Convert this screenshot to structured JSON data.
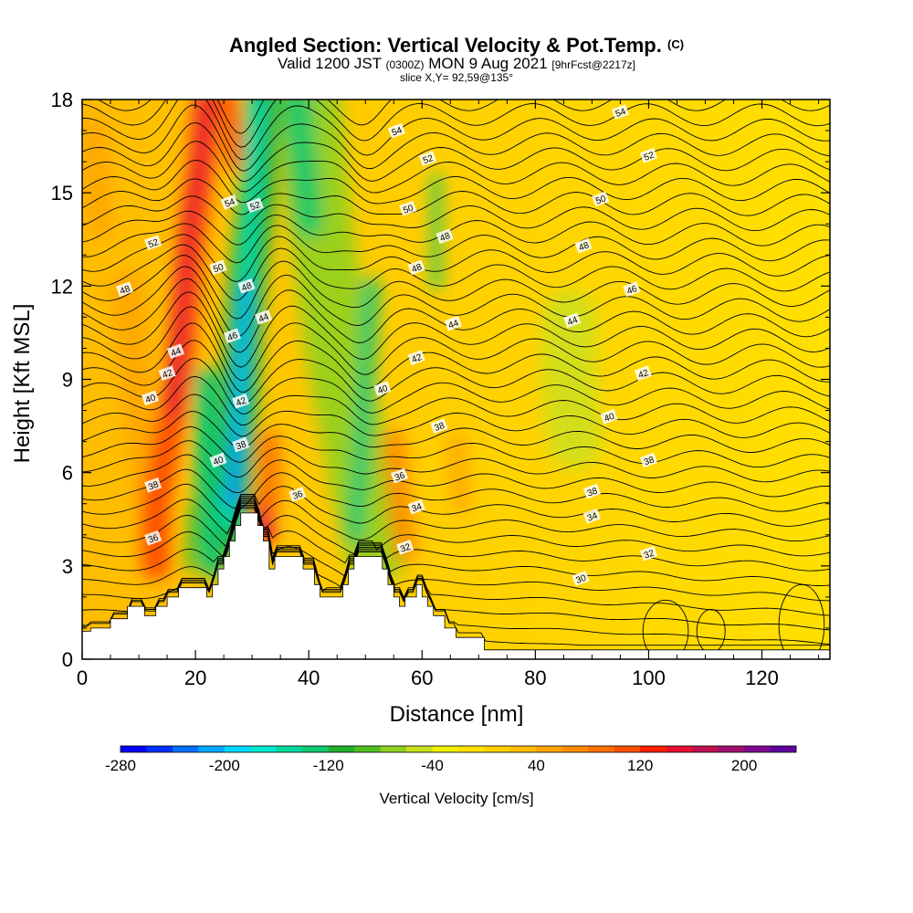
{
  "chart_data": {
    "type": "heatmap",
    "title": "Angled Section: Vertical Velocity & Pot.Temp.",
    "title_suffix": "(C)",
    "subtitle_main_a": "Valid 1200 JST",
    "subtitle_small_a": "(0300Z)",
    "subtitle_main_b": "MON 9 Aug 2021",
    "subtitle_small_b": "[9hrFcst@2217z]",
    "slice_label": "slice X,Y= 92,59@135°",
    "xlabel": "Distance [nm]",
    "ylabel": "Height [Kft MSL]",
    "xlim": [
      0,
      132
    ],
    "ylim": [
      0,
      18
    ],
    "x_ticks": [
      0,
      20,
      40,
      60,
      80,
      100,
      120
    ],
    "y_ticks": [
      0,
      3,
      6,
      9,
      12,
      15,
      18
    ],
    "colorbar": {
      "label": "Vertical Velocity [cm/s]",
      "range": [
        -280,
        240
      ],
      "tick_labels": [
        -280,
        -200,
        -120,
        -40,
        40,
        120,
        200
      ],
      "colors": [
        "#0000ff",
        "#0030ff",
        "#0070ff",
        "#00a8ff",
        "#00d8ff",
        "#00e8d0",
        "#00d8a0",
        "#10c870",
        "#20b030",
        "#50c020",
        "#90d020",
        "#c8e020",
        "#f0f000",
        "#ffe000",
        "#ffd000",
        "#ffbc00",
        "#ffa400",
        "#ff8c00",
        "#ff7000",
        "#ff5000",
        "#ff2000",
        "#e81030",
        "#c01050",
        "#a01070",
        "#800890",
        "#6000a0"
      ]
    },
    "theta_contour_labels": [
      {
        "v": "54",
        "x": 55.5,
        "y": 17.0
      },
      {
        "v": "52",
        "x": 61,
        "y": 16.1
      },
      {
        "v": "54",
        "x": 95,
        "y": 17.6
      },
      {
        "v": "52",
        "x": 100,
        "y": 16.2
      },
      {
        "v": "54",
        "x": 26,
        "y": 14.7
      },
      {
        "v": "52",
        "x": 30.5,
        "y": 14.6
      },
      {
        "v": "50",
        "x": 57.5,
        "y": 14.5
      },
      {
        "v": "50",
        "x": 91.5,
        "y": 14.8
      },
      {
        "v": "48",
        "x": 64,
        "y": 13.6
      },
      {
        "v": "52",
        "x": 12.5,
        "y": 13.4
      },
      {
        "v": "48",
        "x": 88.5,
        "y": 13.3
      },
      {
        "v": "50",
        "x": 24,
        "y": 12.6
      },
      {
        "v": "48",
        "x": 59,
        "y": 12.6
      },
      {
        "v": "48",
        "x": 29,
        "y": 12.0
      },
      {
        "v": "48",
        "x": 7.5,
        "y": 11.9
      },
      {
        "v": "46",
        "x": 97,
        "y": 11.9
      },
      {
        "v": "44",
        "x": 32,
        "y": 11.0
      },
      {
        "v": "44",
        "x": 65.5,
        "y": 10.8
      },
      {
        "v": "44",
        "x": 86.5,
        "y": 10.9
      },
      {
        "v": "46",
        "x": 26.5,
        "y": 10.4
      },
      {
        "v": "44",
        "x": 16.5,
        "y": 9.9
      },
      {
        "v": "42",
        "x": 59,
        "y": 9.7
      },
      {
        "v": "42",
        "x": 15,
        "y": 9.2
      },
      {
        "v": "42",
        "x": 99,
        "y": 9.2
      },
      {
        "v": "40",
        "x": 53,
        "y": 8.7
      },
      {
        "v": "40",
        "x": 12,
        "y": 8.4
      },
      {
        "v": "42",
        "x": 28,
        "y": 8.3
      },
      {
        "v": "40",
        "x": 93,
        "y": 7.8
      },
      {
        "v": "38",
        "x": 63,
        "y": 7.5
      },
      {
        "v": "38",
        "x": 28,
        "y": 6.9
      },
      {
        "v": "40",
        "x": 24,
        "y": 6.4
      },
      {
        "v": "38",
        "x": 100,
        "y": 6.4
      },
      {
        "v": "36",
        "x": 56,
        "y": 5.9
      },
      {
        "v": "38",
        "x": 12.5,
        "y": 5.6
      },
      {
        "v": "38",
        "x": 90,
        "y": 5.4
      },
      {
        "v": "36",
        "x": 38,
        "y": 5.3
      },
      {
        "v": "34",
        "x": 59,
        "y": 4.9
      },
      {
        "v": "34",
        "x": 90,
        "y": 4.6
      },
      {
        "v": "36",
        "x": 12.5,
        "y": 3.9
      },
      {
        "v": "32",
        "x": 57,
        "y": 3.6
      },
      {
        "v": "32",
        "x": 100,
        "y": 3.4
      },
      {
        "v": "30",
        "x": 88,
        "y": 2.6
      }
    ],
    "terrain": [
      [
        0,
        0.9
      ],
      [
        1.5,
        0.9
      ],
      [
        1.5,
        1.0
      ],
      [
        5,
        1.0
      ],
      [
        5,
        1.3
      ],
      [
        8,
        1.3
      ],
      [
        8,
        1.7
      ],
      [
        11,
        1.7
      ],
      [
        11,
        1.4
      ],
      [
        13,
        1.4
      ],
      [
        13,
        1.7
      ],
      [
        15,
        1.7
      ],
      [
        15,
        2.0
      ],
      [
        17,
        2.0
      ],
      [
        17,
        2.3
      ],
      [
        22,
        2.3
      ],
      [
        22,
        2.0
      ],
      [
        23,
        2.0
      ],
      [
        23,
        2.4
      ],
      [
        24,
        2.4
      ],
      [
        24,
        2.9
      ],
      [
        25,
        2.9
      ],
      [
        25,
        3.3
      ],
      [
        26,
        3.3
      ],
      [
        26,
        3.8
      ],
      [
        27,
        3.8
      ],
      [
        27,
        4.3
      ],
      [
        28,
        4.3
      ],
      [
        28,
        4.7
      ],
      [
        31,
        4.7
      ],
      [
        31,
        4.3
      ],
      [
        32,
        4.3
      ],
      [
        32,
        3.8
      ],
      [
        33,
        3.8
      ],
      [
        33,
        2.9
      ],
      [
        34,
        2.9
      ],
      [
        34,
        3.3
      ],
      [
        39,
        3.3
      ],
      [
        39,
        2.9
      ],
      [
        41,
        2.9
      ],
      [
        41,
        2.4
      ],
      [
        42,
        2.4
      ],
      [
        42,
        2.0
      ],
      [
        46,
        2.0
      ],
      [
        46,
        2.4
      ],
      [
        47,
        2.4
      ],
      [
        47,
        2.9
      ],
      [
        48,
        2.9
      ],
      [
        48,
        3.3
      ],
      [
        53,
        3.3
      ],
      [
        53,
        2.9
      ],
      [
        54,
        2.9
      ],
      [
        54,
        2.4
      ],
      [
        55,
        2.4
      ],
      [
        55,
        2.0
      ],
      [
        56,
        2.0
      ],
      [
        56,
        1.7
      ],
      [
        57,
        1.7
      ],
      [
        57,
        2.0
      ],
      [
        59,
        2.0
      ],
      [
        59,
        2.4
      ],
      [
        60,
        2.4
      ],
      [
        60,
        2.0
      ],
      [
        61,
        2.0
      ],
      [
        61,
        1.7
      ],
      [
        62,
        1.7
      ],
      [
        62,
        1.4
      ],
      [
        64,
        1.4
      ],
      [
        64,
        1.0
      ],
      [
        66,
        1.0
      ],
      [
        66,
        0.7
      ],
      [
        71,
        0.7
      ],
      [
        71,
        0.3
      ],
      [
        132,
        0.3
      ]
    ]
  }
}
